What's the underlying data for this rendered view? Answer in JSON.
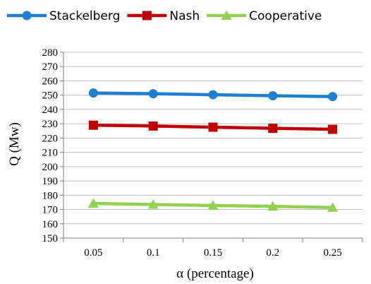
{
  "chart_data": {
    "type": "line",
    "title": "",
    "xlabel": "α (percentage)",
    "ylabel": "Q (Mw)",
    "categories": [
      "0.05",
      "0.1",
      "0.15",
      "0.2",
      "0.25"
    ],
    "ylim": [
      150,
      280
    ],
    "ystep": 10,
    "grid": true,
    "legend": "top",
    "series": [
      {
        "name": "Stackelberg",
        "values": [
          251.5,
          251,
          250.3,
          249.6,
          249
        ],
        "color": "#1f7fd1",
        "marker": "circle"
      },
      {
        "name": "Nash",
        "values": [
          229,
          228.4,
          227.6,
          226.8,
          226.1
        ],
        "color": "#c00000",
        "marker": "square"
      },
      {
        "name": "Cooperative",
        "values": [
          174.2,
          173.5,
          172.8,
          172.2,
          171.4
        ],
        "color": "#92d050",
        "marker": "triangle"
      }
    ]
  }
}
